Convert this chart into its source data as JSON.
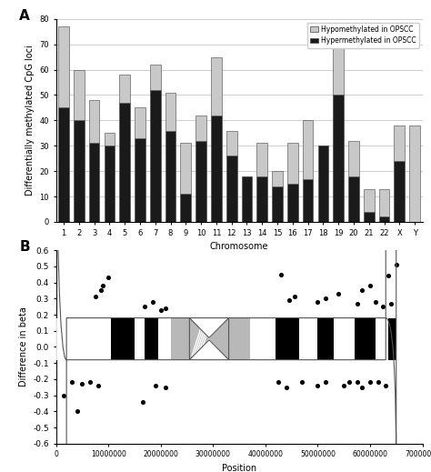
{
  "chromosomes": [
    "1",
    "2",
    "3",
    "4",
    "5",
    "6",
    "7",
    "8",
    "9",
    "10",
    "11",
    "12",
    "13",
    "14",
    "15",
    "16",
    "17",
    "18",
    "19",
    "20",
    "21",
    "22",
    "X",
    "Y"
  ],
  "hyper": [
    45,
    40,
    31,
    30,
    47,
    33,
    52,
    36,
    11,
    32,
    42,
    26,
    18,
    18,
    14,
    15,
    17,
    30,
    50,
    18,
    4,
    2,
    24,
    0
  ],
  "hypo_extra": [
    32,
    20,
    17,
    5,
    11,
    12,
    10,
    15,
    20,
    10,
    23,
    10,
    0,
    13,
    6,
    16,
    23,
    0,
    28,
    14,
    9,
    11,
    14,
    38
  ],
  "bar_color_hyper": "#1a1a1a",
  "bar_color_hypo": "#c8c8c8",
  "panel_a_title": "A",
  "panel_b_title": "B",
  "ylabel_a": "Differentially methylated CpG loci",
  "xlabel_a": "Chromosome",
  "ylabel_b": "Difference in beta",
  "xlabel_b": "Position",
  "ylim_a": [
    0,
    80
  ],
  "yticks_a": [
    0,
    10,
    20,
    30,
    40,
    50,
    60,
    70,
    80
  ],
  "ylim_b": [
    -0.6,
    0.6
  ],
  "yticks_b": [
    -0.6,
    -0.5,
    -0.4,
    -0.3,
    -0.2,
    -0.1,
    0.0,
    0.1,
    0.2,
    0.3,
    0.4,
    0.5,
    0.6
  ],
  "xlim_b": [
    0,
    70000000
  ],
  "xticks_b": [
    0,
    10000000,
    20000000,
    30000000,
    40000000,
    50000000,
    60000000,
    70000000
  ],
  "scatter_pos_up": [
    7500000,
    8500000,
    9000000,
    10000000,
    17000000,
    18500000,
    20000000,
    21000000,
    43000000,
    44500000,
    45500000,
    50000000,
    51500000,
    54000000,
    57500000,
    58500000,
    60000000,
    61000000,
    62500000,
    63500000,
    64000000,
    65000000
  ],
  "scatter_delta_up": [
    0.31,
    0.35,
    0.38,
    0.43,
    0.25,
    0.28,
    0.23,
    0.24,
    0.45,
    0.29,
    0.31,
    0.28,
    0.3,
    0.33,
    0.27,
    0.35,
    0.38,
    0.28,
    0.25,
    0.44,
    0.27,
    0.51
  ],
  "scatter_pos_dn": [
    1500000,
    3000000,
    4000000,
    5000000,
    6500000,
    8000000,
    16500000,
    19000000,
    21000000,
    42500000,
    44000000,
    47000000,
    50000000,
    51500000,
    55000000,
    56000000,
    57500000,
    58500000,
    60000000,
    61500000,
    63000000
  ],
  "scatter_delta_dn": [
    -0.3,
    -0.22,
    -0.4,
    -0.23,
    -0.22,
    -0.24,
    -0.34,
    -0.24,
    -0.25,
    -0.22,
    -0.25,
    -0.22,
    -0.24,
    -0.22,
    -0.24,
    -0.22,
    -0.22,
    -0.25,
    -0.22,
    -0.22,
    -0.24
  ],
  "chrom_end": 65000000,
  "chrom_bands": [
    {
      "start": 0,
      "end": 10500000,
      "color": "white"
    },
    {
      "start": 10500000,
      "end": 15000000,
      "color": "black"
    },
    {
      "start": 15000000,
      "end": 17000000,
      "color": "white"
    },
    {
      "start": 17000000,
      "end": 19500000,
      "color": "black"
    },
    {
      "start": 19500000,
      "end": 22000000,
      "color": "white"
    },
    {
      "start": 22000000,
      "end": 25500000,
      "color": "#b8b8b8"
    },
    {
      "start": 33000000,
      "end": 37000000,
      "color": "#b8b8b8"
    },
    {
      "start": 37000000,
      "end": 42000000,
      "color": "white"
    },
    {
      "start": 42000000,
      "end": 46500000,
      "color": "black"
    },
    {
      "start": 46500000,
      "end": 50000000,
      "color": "white"
    },
    {
      "start": 50000000,
      "end": 53000000,
      "color": "black"
    },
    {
      "start": 53000000,
      "end": 57000000,
      "color": "white"
    },
    {
      "start": 57000000,
      "end": 61000000,
      "color": "black"
    },
    {
      "start": 61000000,
      "end": 63500000,
      "color": "white"
    },
    {
      "start": 63500000,
      "end": 65000000,
      "color": "black"
    }
  ],
  "centromere_start": 25500000,
  "centromere_end": 33000000
}
